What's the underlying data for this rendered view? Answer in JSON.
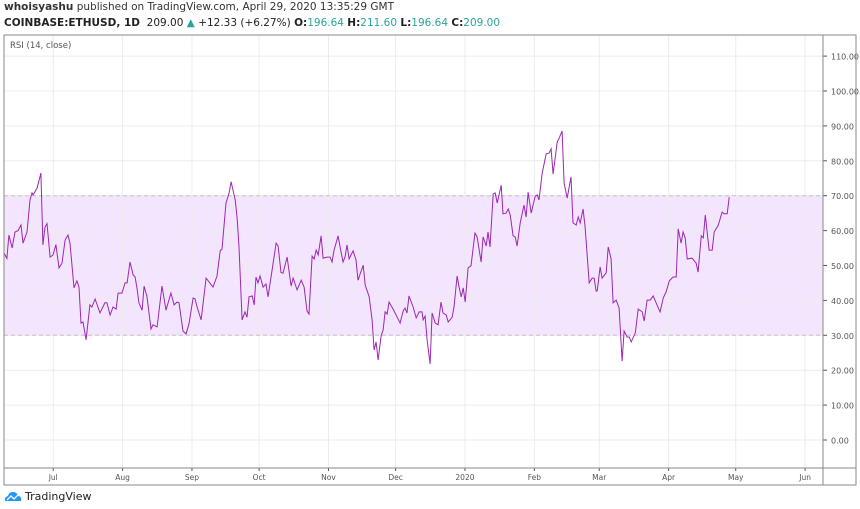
{
  "header": {
    "author": "whoisyashu",
    "published_text": "published on TradingView.com, April 29, 2020 13:35:29 GMT",
    "symbol": "COINBASE:ETHUSD, 1D",
    "last": "209.00",
    "change": "+12.33 (+6.27%)",
    "o_label": "O:",
    "o": "196.64",
    "h_label": "H:",
    "h": "211.60",
    "l_label": "L:",
    "l": "196.64",
    "c_label": "C:",
    "c": "209.00"
  },
  "footer": {
    "brand": "TradingView"
  },
  "colors": {
    "line": "#9c27b0",
    "band": "#f3e5fd",
    "up": "#26a69a",
    "grid": "#ececec"
  },
  "chart_data": {
    "type": "line",
    "title": "RSI (14, close)",
    "x_unit": "days since 2019-06-09",
    "xlim": [
      0,
      366
    ],
    "ylim": [
      -8,
      118
    ],
    "grid": true,
    "band": {
      "upper": 70,
      "lower": 30
    },
    "y_ticks": [
      "0.00",
      "10.00",
      "20.00",
      "30.00",
      "40.00",
      "50.00",
      "60.00",
      "70.00",
      "80.00",
      "90.00",
      "100.00",
      "110.00"
    ],
    "x_ticks": [
      {
        "label": "Jul",
        "day": 22
      },
      {
        "label": "Aug",
        "day": 53
      },
      {
        "label": "Sep",
        "day": 84
      },
      {
        "label": "Oct",
        "day": 114
      },
      {
        "label": "Nov",
        "day": 145
      },
      {
        "label": "Dec",
        "day": 175
      },
      {
        "label": "2020",
        "day": 206
      },
      {
        "label": "Feb",
        "day": 237
      },
      {
        "label": "Mar",
        "day": 266
      },
      {
        "label": "Apr",
        "day": 297
      },
      {
        "label": "May",
        "day": 327
      },
      {
        "label": "Jun",
        "day": 358
      }
    ],
    "series": [
      {
        "name": "RSI",
        "points": [
          [
            0,
            53.6
          ],
          [
            1.3,
            52
          ],
          [
            2.2,
            58.7
          ],
          [
            3.6,
            55
          ],
          [
            4.9,
            59.6
          ],
          [
            6.3,
            60
          ],
          [
            7.6,
            61.6
          ],
          [
            8.5,
            56.4
          ],
          [
            10.3,
            59.6
          ],
          [
            11.6,
            68.8
          ],
          [
            12.5,
            70.8
          ],
          [
            13,
            70.2
          ],
          [
            14.8,
            72.2
          ],
          [
            16.5,
            76.5
          ],
          [
            17.4,
            55.9
          ],
          [
            18.3,
            61
          ],
          [
            19.2,
            62
          ],
          [
            20.6,
            52.4
          ],
          [
            21.9,
            53
          ],
          [
            23.2,
            56
          ],
          [
            24.6,
            49.3
          ],
          [
            25.9,
            50.7
          ],
          [
            27.3,
            57.3
          ],
          [
            28.6,
            58.7
          ],
          [
            29.5,
            56.4
          ],
          [
            31.3,
            43.6
          ],
          [
            32.6,
            45.6
          ],
          [
            33.5,
            43.8
          ],
          [
            34.4,
            33.5
          ],
          [
            35.3,
            33.8
          ],
          [
            36.7,
            28.7
          ],
          [
            38.4,
            38.7
          ],
          [
            39.3,
            38.1
          ],
          [
            40.7,
            40.4
          ],
          [
            42.9,
            36.4
          ],
          [
            45.1,
            39.3
          ],
          [
            46,
            39.3
          ],
          [
            47.4,
            35.8
          ],
          [
            48.7,
            38.1
          ],
          [
            50.1,
            37.5
          ],
          [
            51,
            42.1
          ],
          [
            52.7,
            42.1
          ],
          [
            54.1,
            45
          ],
          [
            55,
            45
          ],
          [
            56.3,
            51
          ],
          [
            57.7,
            47.3
          ],
          [
            58.6,
            46.7
          ],
          [
            59.5,
            43.3
          ],
          [
            60.3,
            39.3
          ],
          [
            61.7,
            37.2
          ],
          [
            62.6,
            44.1
          ],
          [
            63.9,
            41
          ],
          [
            65.7,
            31.8
          ],
          [
            66.6,
            33
          ],
          [
            68.4,
            32.4
          ],
          [
            70.6,
            44.1
          ],
          [
            72.4,
            37.2
          ],
          [
            74.6,
            42.1
          ],
          [
            76,
            38.7
          ],
          [
            77.3,
            39.5
          ],
          [
            78.2,
            39.3
          ],
          [
            80,
            31.2
          ],
          [
            81.4,
            30.4
          ],
          [
            82.7,
            33.5
          ],
          [
            84.5,
            40.7
          ],
          [
            85.4,
            40.4
          ],
          [
            86.3,
            38.1
          ],
          [
            88.1,
            34.4
          ],
          [
            90.3,
            46.4
          ],
          [
            93.4,
            43.8
          ],
          [
            95.2,
            47
          ],
          [
            96.6,
            54.2
          ],
          [
            97.4,
            54.7
          ],
          [
            99.2,
            67.9
          ],
          [
            100.6,
            70.8
          ],
          [
            101.5,
            74
          ],
          [
            103.3,
            68.8
          ],
          [
            104.2,
            63.3
          ],
          [
            105,
            55.3
          ],
          [
            106.4,
            34.4
          ],
          [
            107.7,
            36.7
          ],
          [
            108.6,
            35.2
          ],
          [
            109.5,
            41
          ],
          [
            110.9,
            41.3
          ],
          [
            111.8,
            38.7
          ],
          [
            112.6,
            46.7
          ],
          [
            113.5,
            45
          ],
          [
            114.4,
            47
          ],
          [
            115.8,
            43.8
          ],
          [
            117.1,
            44.7
          ],
          [
            118,
            41
          ],
          [
            119.8,
            48.7
          ],
          [
            121.6,
            56.4
          ],
          [
            122.5,
            55.6
          ],
          [
            123.8,
            48
          ],
          [
            124.7,
            47.8
          ],
          [
            126.5,
            52.4
          ],
          [
            128.3,
            44.1
          ],
          [
            129.2,
            46.4
          ],
          [
            131,
            43
          ],
          [
            132.8,
            45.8
          ],
          [
            134.1,
            43.8
          ],
          [
            135.4,
            37
          ],
          [
            136.3,
            36.1
          ],
          [
            137.7,
            52.7
          ],
          [
            138.6,
            51.9
          ],
          [
            139.5,
            54.4
          ],
          [
            140.4,
            53
          ],
          [
            141.7,
            58.5
          ],
          [
            142.6,
            52.1
          ],
          [
            144.4,
            52.4
          ],
          [
            145.7,
            52.4
          ],
          [
            146.6,
            51
          ],
          [
            147.5,
            54.4
          ],
          [
            149.3,
            58.5
          ],
          [
            150.2,
            55.3
          ],
          [
            151.5,
            51
          ],
          [
            152.4,
            52.4
          ],
          [
            153.3,
            55.9
          ],
          [
            154.2,
            51.9
          ],
          [
            156,
            54.2
          ],
          [
            157.3,
            51.6
          ],
          [
            158.2,
            45.8
          ],
          [
            160.5,
            50.1
          ],
          [
            161.4,
            44.4
          ],
          [
            163.2,
            41
          ],
          [
            164.5,
            34.4
          ],
          [
            165.4,
            25.8
          ],
          [
            166.3,
            28.1
          ],
          [
            167.2,
            22.9
          ],
          [
            168.5,
            29.8
          ],
          [
            169.4,
            31.5
          ],
          [
            170.3,
            36.7
          ],
          [
            171.2,
            36.1
          ],
          [
            172.1,
            39.5
          ],
          [
            173.9,
            37.5
          ],
          [
            175.7,
            35.2
          ],
          [
            177,
            33.5
          ],
          [
            178.4,
            37
          ],
          [
            179.2,
            37.8
          ],
          [
            180.1,
            36.4
          ],
          [
            181,
            41.3
          ],
          [
            182.8,
            38.1
          ],
          [
            184.2,
            35
          ],
          [
            185.5,
            36.7
          ],
          [
            186.8,
            36.7
          ],
          [
            187.3,
            34.4
          ],
          [
            188.2,
            35.5
          ],
          [
            189.1,
            28.7
          ],
          [
            190.4,
            21.8
          ],
          [
            191.3,
            36.4
          ],
          [
            192.7,
            33.5
          ],
          [
            194,
            33
          ],
          [
            195.3,
            39.5
          ],
          [
            196.2,
            36.4
          ],
          [
            197.6,
            35.8
          ],
          [
            198.5,
            33.8
          ],
          [
            200.3,
            35.2
          ],
          [
            201.1,
            38.1
          ],
          [
            202.5,
            47
          ],
          [
            203.4,
            43.8
          ],
          [
            204.3,
            41
          ],
          [
            205.2,
            43.6
          ],
          [
            206.1,
            39.5
          ],
          [
            207.4,
            49.3
          ],
          [
            208.7,
            49.9
          ],
          [
            210.5,
            59.3
          ],
          [
            211.4,
            58.2
          ],
          [
            213.2,
            51
          ],
          [
            214.1,
            58.2
          ],
          [
            215.5,
            55.6
          ],
          [
            216.3,
            59.6
          ],
          [
            217.2,
            55.3
          ],
          [
            218.6,
            70.5
          ],
          [
            219.5,
            70.8
          ],
          [
            220.4,
            67.9
          ],
          [
            222.2,
            73
          ],
          [
            223,
            64.8
          ],
          [
            224.4,
            65
          ],
          [
            225.3,
            66.2
          ],
          [
            226.2,
            64.5
          ],
          [
            227.5,
            58.5
          ],
          [
            228.4,
            58.2
          ],
          [
            229.3,
            55.6
          ],
          [
            230.7,
            62.2
          ],
          [
            232.4,
            67.3
          ],
          [
            233.3,
            63.9
          ],
          [
            234.2,
            71
          ],
          [
            235.6,
            65
          ],
          [
            237.4,
            69.9
          ],
          [
            238.3,
            70.2
          ],
          [
            239.1,
            68.8
          ],
          [
            240.5,
            76.5
          ],
          [
            242.3,
            82
          ],
          [
            243.6,
            82.2
          ],
          [
            244.5,
            83.4
          ],
          [
            245.4,
            76.2
          ],
          [
            247.2,
            85.4
          ],
          [
            248.1,
            86.5
          ],
          [
            249.4,
            88.5
          ],
          [
            250.3,
            73.6
          ],
          [
            251.7,
            69.3
          ],
          [
            253.4,
            75.4
          ],
          [
            254.3,
            62.2
          ],
          [
            255.7,
            61.6
          ],
          [
            256.6,
            63.9
          ],
          [
            257.5,
            62.2
          ],
          [
            258.8,
            66.2
          ],
          [
            259.7,
            61
          ],
          [
            261.5,
            45
          ],
          [
            262.8,
            46.4
          ],
          [
            263.7,
            46.4
          ],
          [
            264.6,
            42.7
          ],
          [
            265.1,
            42.7
          ],
          [
            266.4,
            49.6
          ],
          [
            267.3,
            46.4
          ],
          [
            269.1,
            47.9
          ],
          [
            270,
            55.3
          ],
          [
            271.3,
            51.9
          ],
          [
            272.2,
            39.3
          ],
          [
            273.6,
            40.1
          ],
          [
            274.9,
            37.8
          ],
          [
            276.2,
            22.6
          ],
          [
            277.1,
            31.2
          ],
          [
            278.5,
            29.5
          ],
          [
            279.4,
            29.5
          ],
          [
            280.3,
            28.1
          ],
          [
            282.1,
            30.7
          ],
          [
            283.4,
            37.5
          ],
          [
            285.2,
            36.7
          ],
          [
            286.1,
            34.1
          ],
          [
            287.4,
            40.1
          ],
          [
            288.8,
            40.1
          ],
          [
            290.1,
            41.3
          ],
          [
            291.4,
            39.3
          ],
          [
            293.2,
            36.7
          ],
          [
            294.6,
            40.7
          ],
          [
            295.9,
            42.4
          ],
          [
            297.3,
            45.6
          ],
          [
            299,
            46.7
          ],
          [
            300.4,
            46.7
          ],
          [
            301.3,
            60.5
          ],
          [
            302.6,
            56.4
          ],
          [
            303.5,
            59.6
          ],
          [
            304.4,
            57.9
          ],
          [
            305.3,
            51.9
          ],
          [
            307.5,
            52.1
          ],
          [
            309.3,
            50.7
          ],
          [
            310.2,
            48.1
          ],
          [
            311.6,
            58.5
          ],
          [
            312.5,
            57.9
          ],
          [
            313.4,
            64.5
          ],
          [
            315.1,
            54.4
          ],
          [
            316.5,
            54.4
          ],
          [
            317.4,
            59.6
          ],
          [
            319.2,
            61.6
          ],
          [
            320.9,
            65.3
          ],
          [
            321.8,
            64.8
          ],
          [
            323.2,
            64.8
          ],
          [
            324.1,
            69.6
          ]
        ]
      }
    ]
  }
}
